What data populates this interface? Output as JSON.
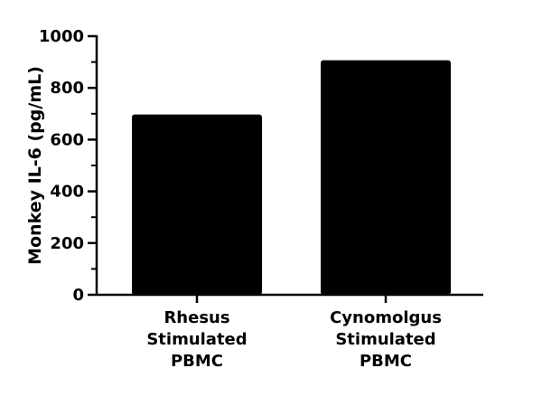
{
  "chart_data": {
    "type": "bar",
    "categories": [
      [
        "Rhesus",
        "Stimulated",
        "PBMC"
      ],
      [
        "Cynomolgus",
        "Stimulated",
        "PBMC"
      ]
    ],
    "values": [
      697,
      907
    ],
    "title": "",
    "xlabel": "",
    "ylabel": "Monkey IL-6 (pg/mL)",
    "ylim": [
      0,
      1000
    ],
    "yticks": [
      0,
      200,
      400,
      600,
      800,
      1000
    ],
    "ytick_labels": [
      "0",
      "200",
      "400",
      "600",
      "800",
      "1000"
    ],
    "grid": false,
    "legend": "none",
    "bar_color": "#000000",
    "axis_color": "#000000"
  }
}
